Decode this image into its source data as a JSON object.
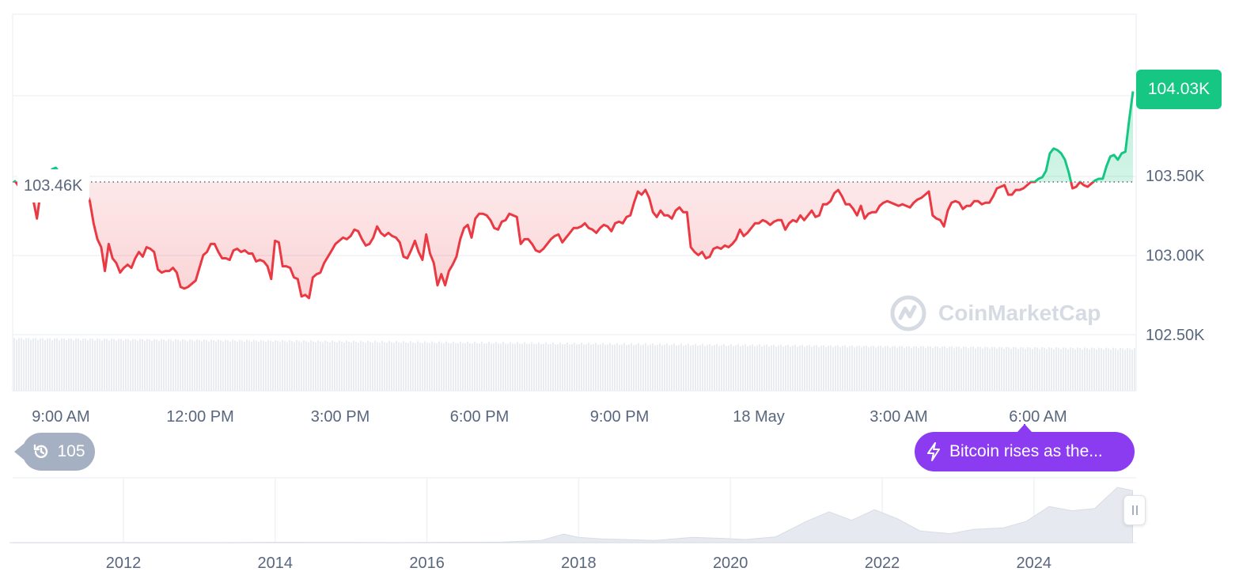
{
  "chart_data": [
    {
      "type": "line",
      "title": "",
      "xlabel": "",
      "ylabel": "",
      "x_ticks": [
        "9:00 AM",
        "12:00 PM",
        "3:00 PM",
        "6:00 PM",
        "9:00 PM",
        "18 May",
        "3:00 AM",
        "6:00 AM"
      ],
      "y_ticks": [
        "103.50K",
        "103.00K",
        "102.50K"
      ],
      "ylim": [
        102.27,
        104.5
      ],
      "reference_value": 103.46,
      "reference_label": "103.46K",
      "current_value": 104.03,
      "current_label": "104.03K",
      "series": [
        {
          "values": [
            103.47,
            103.44,
            103.4,
            103.37,
            103.38,
            103.35,
            103.23,
            103.4,
            103.43,
            103.49,
            103.54,
            103.55,
            103.52,
            103.5,
            103.49,
            103.48,
            103.47,
            103.46,
            103.45,
            103.4,
            103.34,
            103.2,
            103.1,
            103.05,
            102.9,
            103.07,
            102.98,
            102.95,
            102.89,
            102.92,
            102.94,
            102.92,
            102.98,
            103.02,
            102.99,
            103.05,
            103.04,
            103.02,
            102.91,
            102.89,
            102.9,
            102.9,
            102.92,
            102.89,
            102.8,
            102.79,
            102.8,
            102.82,
            102.84,
            102.92,
            103.0,
            103.02,
            103.07,
            103.07,
            103.02,
            102.98,
            102.98,
            102.97,
            103.03,
            103.04,
            103.02,
            103.03,
            103.01,
            103.01,
            102.96,
            102.97,
            102.96,
            102.93,
            102.85,
            103.09,
            103.08,
            102.93,
            102.93,
            102.92,
            102.86,
            102.85,
            102.74,
            102.75,
            102.73,
            102.86,
            102.88,
            102.89,
            102.95,
            102.99,
            103.03,
            103.07,
            103.09,
            103.11,
            103.1,
            103.12,
            103.16,
            103.15,
            103.1,
            103.06,
            103.07,
            103.11,
            103.18,
            103.14,
            103.12,
            103.14,
            103.12,
            103.11,
            103.08,
            102.99,
            102.98,
            103.03,
            103.09,
            103.02,
            102.97,
            103.13,
            103.01,
            102.95,
            102.81,
            102.88,
            102.81,
            102.9,
            102.94,
            102.99,
            103.1,
            103.17,
            103.19,
            103.11,
            103.23,
            103.26,
            103.26,
            103.25,
            103.22,
            103.17,
            103.16,
            103.21,
            103.22,
            103.26,
            103.25,
            103.24,
            103.07,
            103.1,
            103.1,
            103.07,
            103.03,
            103.02,
            103.04,
            103.07,
            103.1,
            103.12,
            103.13,
            103.08,
            103.11,
            103.14,
            103.17,
            103.17,
            103.18,
            103.2,
            103.17,
            103.16,
            103.14,
            103.17,
            103.19,
            103.18,
            103.15,
            103.2,
            103.21,
            103.2,
            103.24,
            103.25,
            103.33,
            103.4,
            103.38,
            103.41,
            103.36,
            103.27,
            103.24,
            103.28,
            103.25,
            103.25,
            103.23,
            103.28,
            103.3,
            103.27,
            103.27,
            103.05,
            103.02,
            103.0,
            103.02,
            102.98,
            102.99,
            103.04,
            103.05,
            103.04,
            103.06,
            103.05,
            103.07,
            103.1,
            103.16,
            103.12,
            103.14,
            103.17,
            103.2,
            103.2,
            103.22,
            103.21,
            103.19,
            103.21,
            103.22,
            103.22,
            103.16,
            103.2,
            103.22,
            103.21,
            103.25,
            103.22,
            103.25,
            103.28,
            103.24,
            103.25,
            103.32,
            103.32,
            103.34,
            103.39,
            103.41,
            103.37,
            103.32,
            103.32,
            103.29,
            103.25,
            103.31,
            103.23,
            103.26,
            103.27,
            103.27,
            103.31,
            103.33,
            103.34,
            103.33,
            103.32,
            103.31,
            103.32,
            103.31,
            103.3,
            103.33,
            103.35,
            103.36,
            103.38,
            103.4,
            103.25,
            103.23,
            103.22,
            103.18,
            103.28,
            103.33,
            103.34,
            103.33,
            103.29,
            103.31,
            103.31,
            103.34,
            103.34,
            103.32,
            103.33,
            103.33,
            103.37,
            103.42,
            103.43,
            103.44,
            103.38,
            103.38,
            103.41,
            103.41,
            103.42,
            103.44,
            103.46,
            103.46,
            103.48,
            103.49,
            103.53,
            103.64,
            103.67,
            103.66,
            103.64,
            103.6,
            103.52,
            103.42,
            103.43,
            103.46,
            103.44,
            103.43,
            103.45,
            103.47,
            103.48,
            103.48,
            103.56,
            103.62,
            103.63,
            103.6,
            103.64,
            103.65,
            103.85,
            104.03
          ]
        }
      ]
    },
    {
      "type": "area",
      "title": "",
      "x_ticks": [
        "2012",
        "2014",
        "2016",
        "2018",
        "2020",
        "2022",
        "2024"
      ],
      "x": [
        2010.5,
        2011.0,
        2011.5,
        2012.0,
        2012.5,
        2013.0,
        2013.5,
        2014.0,
        2014.5,
        2015.0,
        2015.5,
        2016.0,
        2016.5,
        2017.0,
        2017.5,
        2017.8,
        2018.0,
        2018.3,
        2018.6,
        2019.0,
        2019.5,
        2019.9,
        2020.2,
        2020.6,
        2021.0,
        2021.3,
        2021.6,
        2021.9,
        2022.2,
        2022.5,
        2022.9,
        2023.2,
        2023.6,
        2023.9,
        2024.2,
        2024.5,
        2024.8,
        2025.1,
        2025.3
      ],
      "values": [
        0,
        0,
        0,
        0,
        0,
        0,
        0.1,
        0.6,
        0.5,
        0.3,
        0.2,
        0.4,
        0.7,
        1.0,
        4,
        16,
        10,
        7,
        6,
        4,
        10,
        8,
        6,
        11,
        40,
        58,
        42,
        62,
        45,
        22,
        17,
        25,
        28,
        40,
        68,
        60,
        64,
        104,
        98
      ]
    }
  ],
  "history": {
    "count": "105"
  },
  "news": {
    "label": "Bitcoin rises as the..."
  },
  "watermark": {
    "text": "CoinMarketCap"
  },
  "colors": {
    "down": "#ea3943",
    "up": "#16c784",
    "news": "#8c3cf0",
    "chip": "#a6b0c3"
  }
}
